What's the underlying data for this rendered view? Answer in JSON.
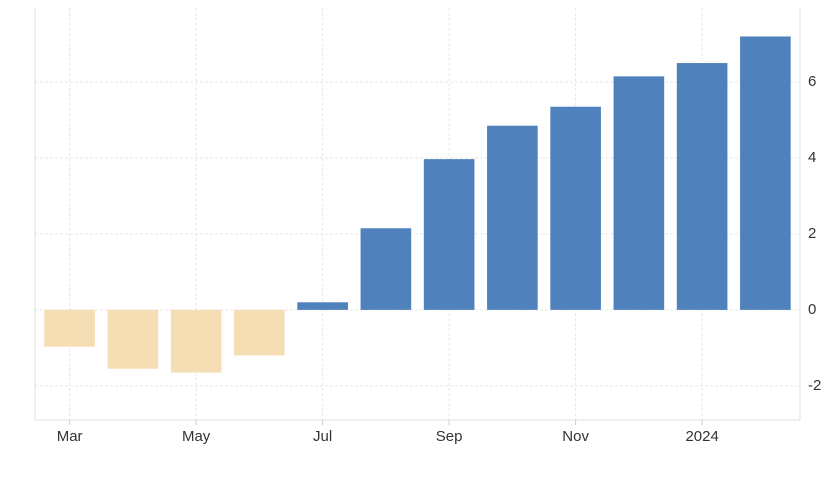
{
  "chart_data": {
    "type": "bar",
    "categories": [
      "Mar",
      null,
      "May",
      null,
      "Jul",
      null,
      "Sep",
      null,
      "Nov",
      null,
      "2024",
      null
    ],
    "values": [
      -0.97,
      -1.55,
      -1.65,
      -1.2,
      0.2,
      2.15,
      3.97,
      4.85,
      5.35,
      6.15,
      6.5,
      7.2
    ],
    "color": "#4f81bd",
    "negative_color": "#f5deb3",
    "ylim": [
      -2.9,
      7.95
    ],
    "yticks": [
      -2,
      0,
      2,
      4,
      6
    ],
    "grid": true
  }
}
